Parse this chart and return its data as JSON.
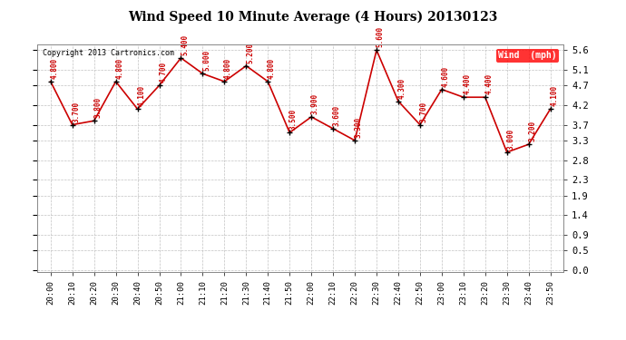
{
  "title": "Wind Speed 10 Minute Average (4 Hours) 20130123",
  "x_labels": [
    "20:00",
    "20:10",
    "20:20",
    "20:30",
    "20:40",
    "20:50",
    "21:00",
    "21:10",
    "21:20",
    "21:30",
    "21:40",
    "21:50",
    "22:00",
    "22:10",
    "22:20",
    "22:30",
    "22:40",
    "22:50",
    "23:00",
    "23:10",
    "23:20",
    "23:30",
    "23:40",
    "23:50"
  ],
  "y_values": [
    4.8,
    3.7,
    3.8,
    4.8,
    4.1,
    4.7,
    5.4,
    5.0,
    4.8,
    5.2,
    4.8,
    3.5,
    3.9,
    3.6,
    3.3,
    5.6,
    4.3,
    3.7,
    4.6,
    4.4,
    4.4,
    3.0,
    3.2,
    4.1
  ],
  "line_color": "#cc0000",
  "marker_color": "#000000",
  "label_color": "#cc0000",
  "yticks": [
    0.0,
    0.5,
    0.9,
    1.4,
    1.9,
    2.3,
    2.8,
    3.3,
    3.7,
    4.2,
    4.7,
    5.1,
    5.6
  ],
  "ylim": [
    -0.05,
    5.75
  ],
  "legend_label": "Wind  (mph)",
  "copyright_text": "Copyright 2013 Cartronics.com",
  "background_color": "#ffffff",
  "plot_background": "#ffffff",
  "grid_color": "#bbbbbb"
}
